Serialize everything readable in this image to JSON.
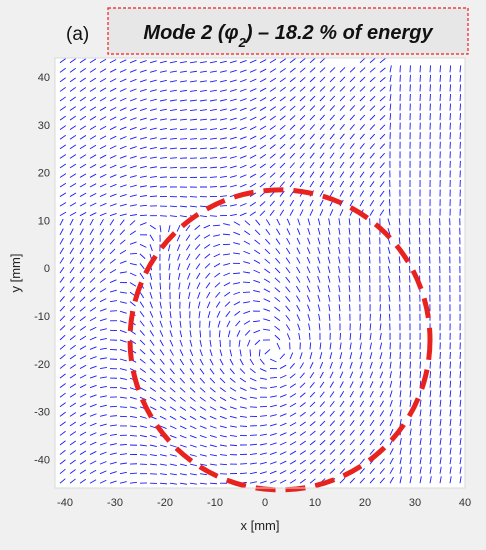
{
  "panel_label": "(a)",
  "title": {
    "prefix": "Mode 2 (",
    "symbol": "φ",
    "subscript": "2",
    "suffix": ") – 18.2 % of energy"
  },
  "colors": {
    "vectors": "#1a1aff",
    "circle": "#e8231f",
    "title_box_bg": "#e7e7e7",
    "title_box_border": "#e8231f",
    "axes_bg": "#ffffff",
    "figure_bg": "#f0f0f0"
  },
  "chart_data": {
    "type": "quiver",
    "xlabel": "x [mm]",
    "ylabel": "y [mm]",
    "xlim": [
      -42,
      40
    ],
    "ylim": [
      -46,
      44
    ],
    "xticks": [
      -40,
      -30,
      -20,
      -10,
      0,
      10,
      20,
      30,
      40
    ],
    "yticks": [
      -40,
      -30,
      -20,
      -10,
      0,
      10,
      20,
      30,
      40
    ],
    "grid": false,
    "vortex_center": [
      2,
      -18
    ],
    "grid_spacing": [
      2.0,
      2.0
    ],
    "annotation_circle": {
      "center": [
        3,
        -15
      ],
      "radius": 30,
      "style": "dashed"
    }
  }
}
